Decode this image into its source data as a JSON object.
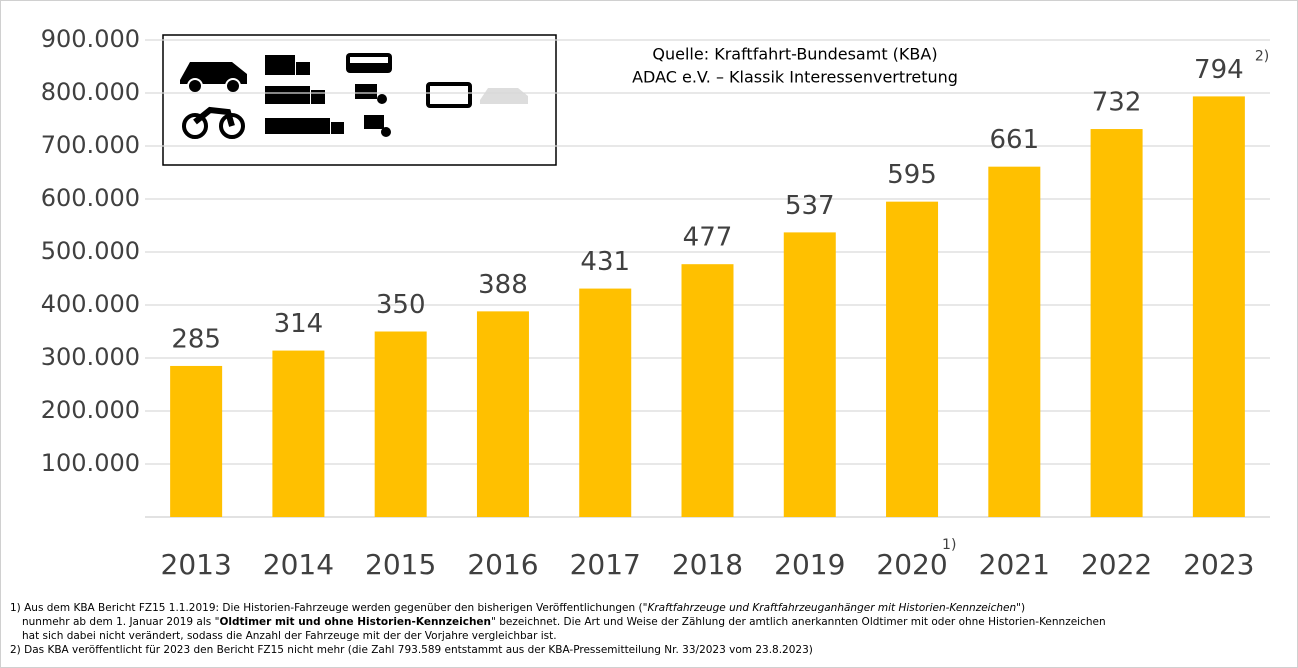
{
  "chart_data": {
    "type": "bar",
    "categories": [
      "2013",
      "2014",
      "2015",
      "2016",
      "2017",
      "2018",
      "2019",
      "2020",
      "2021",
      "2022",
      "2023"
    ],
    "values": [
      285000,
      314000,
      350000,
      388000,
      431000,
      477000,
      537000,
      595000,
      661000,
      732000,
      793589
    ],
    "value_labels": [
      "285",
      "314",
      "350",
      "388",
      "431",
      "477",
      "537",
      "595",
      "661",
      "732",
      "794"
    ],
    "color": "#FFC000",
    "ylim": [
      0,
      900000
    ],
    "yticks": [
      {
        "value": 100000,
        "label": "100.000"
      },
      {
        "value": 200000,
        "label": "200.000"
      },
      {
        "value": 300000,
        "label": "300.000"
      },
      {
        "value": 400000,
        "label": "400.000"
      },
      {
        "value": 500000,
        "label": "500.000"
      },
      {
        "value": 600000,
        "label": "600.000"
      },
      {
        "value": 700000,
        "label": "700.000"
      },
      {
        "value": 800000,
        "label": "800.000"
      },
      {
        "value": 900000,
        "label": "900.000"
      }
    ],
    "grid": true,
    "annotations": [
      {
        "text": "2)",
        "category": 10,
        "at": "value"
      },
      {
        "text": "1)",
        "category": 7,
        "at": "axis"
      }
    ],
    "source": [
      "Quelle: Kraftfahrt-Bundesamt (KBA)",
      "ADAC e.V. – Klassik Interessenvertretung"
    ],
    "footnotes": [
      [
        {
          "text": "1)  Aus dem KBA Bericht FZ15 1.1.2019:  Die Historien-Fahrzeuge werden gegenüber den bisherigen Veröffentlichungen  (\"",
          "style": "normal"
        },
        {
          "text": "Kraftfahrzeuge und Kraftfahrzeuganhänger mit Historien-Kennzeichen",
          "style": "italic"
        },
        {
          "text": "\")",
          "style": "normal"
        }
      ],
      [
        {
          "text": "nunmehr ab dem  1. Januar 2019 als  \"",
          "style": "normal"
        },
        {
          "text": "Oldtimer mit und ohne Historien-Kennzeichen",
          "style": "bold"
        },
        {
          "text": "\" bezeichnet. Die Art und Weise der Zählung der amtlich anerkannten Oldtimer mit oder ohne Historien-Kennzeichen",
          "style": "normal"
        }
      ],
      [
        {
          "text": "hat sich dabei nicht verändert, sodass die Anzahl der Fahrzeuge mit der der Vorjahre vergleichbar ist.",
          "style": "normal"
        }
      ],
      [
        {
          "text": "2)  Das KBA veröffentlicht für 2023 den Bericht FZ15 nicht mehr (die Zahl 793.589 entstammt aus der KBA-Pressemitteilung Nr. 33/2023 vom 23.8.2023)",
          "style": "normal"
        }
      ]
    ]
  }
}
